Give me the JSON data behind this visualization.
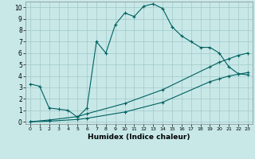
{
  "xlabel": "Humidex (Indice chaleur)",
  "xlim": [
    -0.5,
    23.5
  ],
  "ylim": [
    -0.2,
    10.5
  ],
  "xticks": [
    0,
    1,
    2,
    3,
    4,
    5,
    6,
    7,
    8,
    9,
    10,
    11,
    12,
    13,
    14,
    15,
    16,
    17,
    18,
    19,
    20,
    21,
    22,
    23
  ],
  "yticks": [
    0,
    1,
    2,
    3,
    4,
    5,
    6,
    7,
    8,
    9,
    10
  ],
  "background_color": "#c8e8e8",
  "grid_color": "#a0c8c8",
  "line_color": "#006060",
  "line1_x": [
    0,
    1,
    2,
    3,
    4,
    5,
    6,
    7,
    8,
    9,
    10,
    11,
    12,
    13,
    14,
    15,
    16,
    17,
    18,
    19,
    20,
    21,
    22,
    23
  ],
  "line1_y": [
    3.3,
    3.1,
    1.2,
    1.1,
    1.0,
    0.4,
    1.2,
    7.0,
    6.0,
    8.5,
    9.5,
    9.2,
    10.1,
    10.3,
    9.9,
    8.3,
    7.5,
    7.0,
    6.5,
    6.5,
    6.0,
    4.8,
    4.2,
    4.1
  ],
  "line2_x": [
    0,
    2,
    5,
    6,
    10,
    14,
    19,
    20,
    21,
    22,
    23
  ],
  "line2_y": [
    0.0,
    0.15,
    0.45,
    0.7,
    1.6,
    2.8,
    4.8,
    5.2,
    5.5,
    5.8,
    6.0
  ],
  "line3_x": [
    0,
    2,
    5,
    6,
    10,
    14,
    19,
    20,
    21,
    22,
    23
  ],
  "line3_y": [
    0.0,
    0.05,
    0.2,
    0.3,
    0.85,
    1.7,
    3.5,
    3.75,
    4.0,
    4.15,
    4.3
  ]
}
